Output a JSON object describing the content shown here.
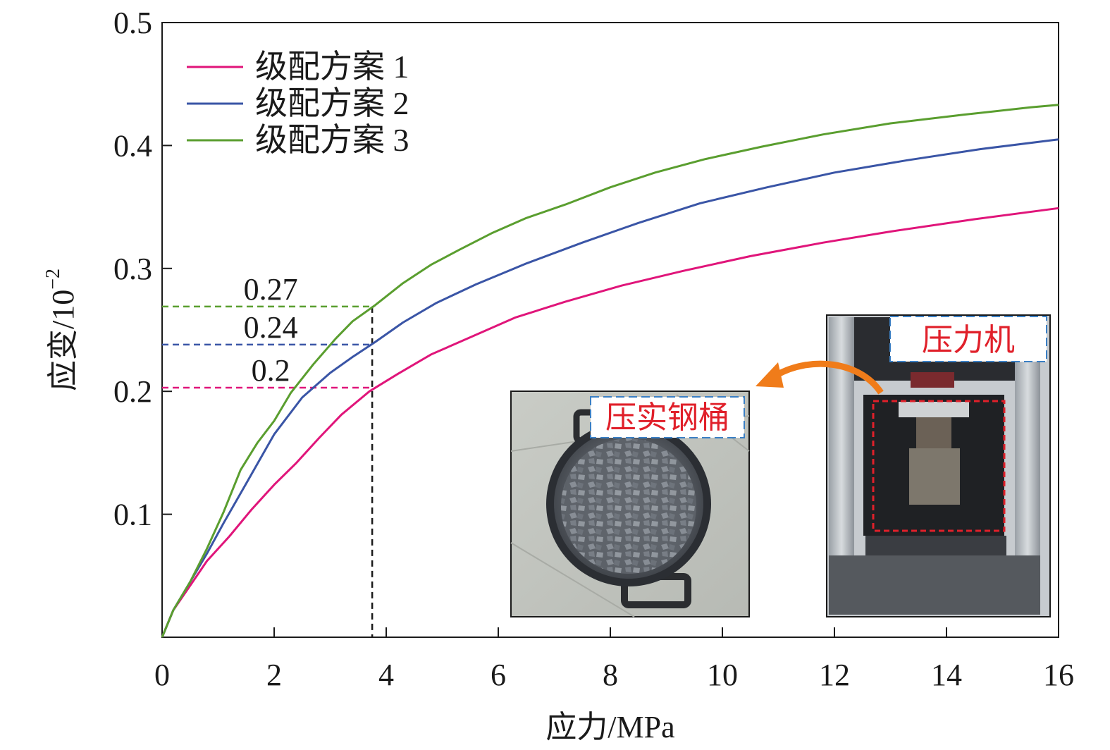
{
  "chart_data": {
    "type": "line",
    "xlabel": "应力/MPa",
    "ylabel": "应变/10",
    "ylabel_exponent": "−2",
    "xlim": [
      0,
      16
    ],
    "ylim": [
      0,
      0.5
    ],
    "x_ticks": [
      "0",
      "2",
      "4",
      "6",
      "8",
      "10",
      "12",
      "14",
      "16"
    ],
    "y_ticks": [
      "0.1",
      "0.2",
      "0.3",
      "0.4",
      "0.5"
    ],
    "grid": false,
    "legend_position": "top-left",
    "series": [
      {
        "name": "级配方案 1",
        "color": "#e0157a",
        "x": [
          0,
          0.2,
          0.5,
          0.8,
          1.2,
          1.6,
          2.0,
          2.4,
          2.8,
          3.2,
          3.7,
          4.2,
          4.8,
          5.5,
          6.3,
          7.2,
          8.2,
          9.3,
          10.5,
          11.8,
          13.0,
          14.5,
          16.0
        ],
        "y": [
          0,
          0.022,
          0.042,
          0.062,
          0.082,
          0.104,
          0.124,
          0.142,
          0.162,
          0.181,
          0.2,
          0.214,
          0.23,
          0.244,
          0.26,
          0.273,
          0.286,
          0.298,
          0.31,
          0.321,
          0.33,
          0.34,
          0.349
        ]
      },
      {
        "name": "级配方案 2",
        "color": "#3a55a6",
        "x": [
          0,
          0.2,
          0.5,
          0.8,
          1.1,
          1.5,
          2.0,
          2.5,
          3.0,
          3.4,
          3.8,
          4.3,
          4.9,
          5.6,
          6.5,
          7.5,
          8.5,
          9.6,
          10.8,
          12.0,
          13.3,
          14.6,
          16.0
        ],
        "y": [
          0,
          0.022,
          0.045,
          0.068,
          0.093,
          0.125,
          0.165,
          0.195,
          0.215,
          0.228,
          0.24,
          0.256,
          0.272,
          0.287,
          0.304,
          0.321,
          0.337,
          0.353,
          0.366,
          0.378,
          0.388,
          0.397,
          0.405
        ]
      },
      {
        "name": "级配方案 3",
        "color": "#5a9e2f",
        "x": [
          0,
          0.2,
          0.5,
          0.8,
          1.1,
          1.4,
          1.7,
          2.0,
          2.3,
          2.7,
          3.1,
          3.4,
          3.8,
          4.3,
          4.8,
          5.3,
          5.9,
          6.5,
          7.2,
          8.0,
          8.8,
          9.7,
          10.7,
          11.8,
          13.0,
          14.3,
          15.5,
          16.0
        ],
        "y": [
          0,
          0.022,
          0.045,
          0.072,
          0.102,
          0.136,
          0.158,
          0.176,
          0.199,
          0.222,
          0.243,
          0.257,
          0.27,
          0.288,
          0.303,
          0.315,
          0.329,
          0.341,
          0.352,
          0.366,
          0.378,
          0.389,
          0.399,
          0.409,
          0.418,
          0.425,
          0.431,
          0.433
        ]
      }
    ],
    "annotations": {
      "x_ref": 3.75,
      "x_ref_color": "#1a1a1a",
      "lines": [
        {
          "label": "0.27",
          "y": 0.269,
          "color": "#5a9e2f"
        },
        {
          "label": "0.24",
          "y": 0.238,
          "color": "#3a55a6"
        },
        {
          "label": "0.2",
          "y": 0.203,
          "color": "#e0157a"
        }
      ]
    }
  },
  "insets": {
    "label_color": "#e0202a",
    "box_color": "#e0202a",
    "label_border_color": "#3a7fc4",
    "arrow_color": "#f07c1a",
    "press": {
      "label": "压力机"
    },
    "bucket": {
      "label": "压实钢桶"
    }
  }
}
